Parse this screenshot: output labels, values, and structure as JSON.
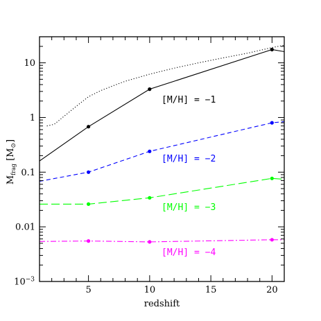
{
  "chart_data": {
    "type": "line",
    "title": "",
    "xlabel": "redshift",
    "ylabel": {
      "main": "M",
      "sub": "frag",
      "unit": "[M",
      "unit_sub": "⊙",
      "unit_close": "]"
    },
    "xlim": [
      1,
      21
    ],
    "ylim": [
      0.001,
      30
    ],
    "yscale": "log",
    "grid": false,
    "x_ticks": [
      5,
      10,
      15,
      20
    ],
    "x_tick_labels": [
      "5",
      "10",
      "15",
      "20"
    ],
    "y_ticks": [
      10,
      1,
      0.1,
      0.01
    ],
    "y_tick_labels": [
      "10",
      "1",
      "0.1",
      "0.01"
    ],
    "y_bottom_label": {
      "base": "10",
      "exp": "−3"
    },
    "series": [
      {
        "name": "[M/H] = −1",
        "color": "#000000",
        "dash": "solid",
        "x": [
          1,
          5,
          10,
          20,
          21
        ],
        "y": [
          0.16,
          0.68,
          3.3,
          17.5,
          16
        ],
        "markers": [
          [
            5,
            0.68
          ],
          [
            10,
            3.3
          ],
          [
            20,
            17.5
          ]
        ]
      },
      {
        "name": "[M/H] = −2",
        "color": "#0000ff",
        "dash": "dashed",
        "x": [
          1,
          5,
          10,
          20,
          21
        ],
        "y": [
          0.068,
          0.1,
          0.24,
          0.8,
          0.84
        ],
        "markers": [
          [
            5,
            0.1
          ],
          [
            10,
            0.24
          ],
          [
            20,
            0.8
          ]
        ]
      },
      {
        "name": "[M/H] = −3",
        "color": "#00ff00",
        "dash": "longdash",
        "x": [
          1,
          5,
          10,
          20,
          21
        ],
        "y": [
          0.026,
          0.026,
          0.034,
          0.077,
          0.074
        ],
        "markers": [
          [
            5,
            0.026
          ],
          [
            10,
            0.034
          ],
          [
            20,
            0.077
          ]
        ]
      },
      {
        "name": "[M/H] = −4",
        "color": "#ff00ff",
        "dash": "dashdot",
        "x": [
          1,
          5,
          10,
          20,
          21
        ],
        "y": [
          0.0054,
          0.0055,
          0.0053,
          0.0058,
          0.0058
        ],
        "markers": [
          [
            5,
            0.0055
          ],
          [
            10,
            0.0053
          ],
          [
            20,
            0.0058
          ]
        ]
      },
      {
        "name": "",
        "color": "#000000",
        "dash": "dotted",
        "x": [
          1.6,
          2.2,
          3,
          4,
          5,
          6,
          7,
          8,
          10,
          12,
          14,
          16,
          18,
          20,
          21
        ],
        "y": [
          0.7,
          0.75,
          1.05,
          1.6,
          2.4,
          3.1,
          3.8,
          4.6,
          6.2,
          8,
          10,
          12.3,
          15,
          19,
          21
        ]
      }
    ]
  }
}
